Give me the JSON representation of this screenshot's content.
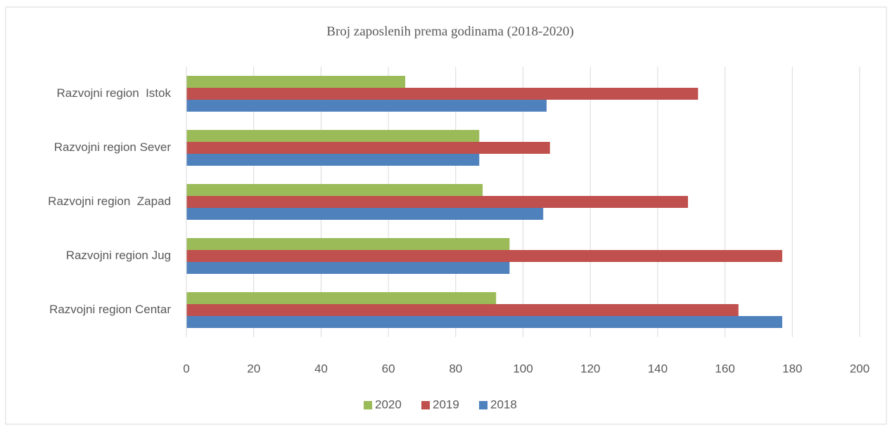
{
  "chart_data": {
    "type": "hbar",
    "title": "Broj zaposlenih prema godinama (2018-2020)",
    "categories": [
      "Razvojni region Centar",
      "Razvojni region Jug",
      "Razvojni region  Zapad",
      "Razvojni region Sever",
      "Razvojni region  Istok"
    ],
    "series": [
      {
        "name": "2020",
        "color": "#9bbb59",
        "values": [
          92,
          96,
          88,
          87,
          65
        ]
      },
      {
        "name": "2019",
        "color": "#c0504d",
        "values": [
          164,
          177,
          149,
          108,
          152
        ]
      },
      {
        "name": "2018",
        "color": "#4f81bd",
        "values": [
          177,
          96,
          106,
          87,
          107
        ]
      }
    ],
    "xlim": [
      0,
      200
    ],
    "xticks": [
      0,
      20,
      40,
      60,
      80,
      100,
      120,
      140,
      160,
      180,
      200
    ],
    "grid": true,
    "legend": "bottom"
  }
}
